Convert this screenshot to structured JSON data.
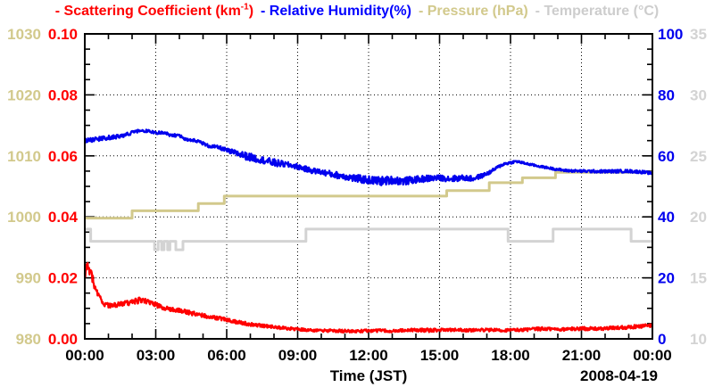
{
  "legend": {
    "entries": [
      {
        "text": "- Scattering Coefficient (km",
        "sup": "-1",
        "text_after": ")",
        "color": "#ff0000",
        "name": "legend-scattering"
      },
      {
        "text": "- Relative Humidity(%)",
        "sup": "",
        "text_after": "",
        "color": "#0000ff",
        "name": "legend-humidity"
      },
      {
        "text": "- Pressure (hPa)",
        "sup": "",
        "text_after": "",
        "color": "#d2c98c",
        "name": "legend-pressure"
      },
      {
        "text": "- Temperature (°C)",
        "sup": "",
        "text_after": "",
        "color": "#cdcdcd",
        "name": "legend-temperature"
      }
    ]
  },
  "chart_data": {
    "type": "line",
    "title": "",
    "x_axis": {
      "label": "Time (JST)",
      "date": "2008-04-19",
      "range_hours": [
        0,
        24
      ],
      "major_tick_hours": 3,
      "minor_tick_hours": 1,
      "tick_hours": [
        0,
        3,
        6,
        9,
        12,
        15,
        18,
        21,
        24
      ],
      "tick_labels": [
        "00:00",
        "03:00",
        "06:00",
        "09:00",
        "12:00",
        "15:00",
        "18:00",
        "21:00",
        "00:00"
      ]
    },
    "grid": {
      "v_lines_hours": [
        3,
        6,
        9,
        12,
        15,
        18,
        21
      ],
      "h_lines_rh": [
        20,
        40,
        60,
        80
      ]
    },
    "series": [
      {
        "name": "Scattering Coefficient (km-1)",
        "color": "#ff0000",
        "style": "noisy",
        "width": 2.3,
        "seed": 7,
        "axis_side": "left-inner",
        "range": [
          0,
          0.1
        ],
        "tick_values": [
          0.1,
          0.08,
          0.06,
          0.04,
          0.02,
          0.0
        ],
        "tick_labels": [
          "0.10",
          "0.08",
          "0.06",
          "0.04",
          "0.02",
          "0.00"
        ],
        "anchors": [
          [
            0,
            0.021,
            0.002
          ],
          [
            0.12,
            0.0245,
            0.0018
          ],
          [
            0.3,
            0.0205,
            0.0015
          ],
          [
            0.45,
            0.016,
            0.0012
          ],
          [
            0.6,
            0.0135,
            0.001
          ],
          [
            0.85,
            0.0115,
            0.0009
          ],
          [
            1.1,
            0.0108,
            0.0008
          ],
          [
            1.5,
            0.0112,
            0.0009
          ],
          [
            1.9,
            0.0118,
            0.0009
          ],
          [
            2.2,
            0.0124,
            0.001
          ],
          [
            2.45,
            0.0128,
            0.001
          ],
          [
            2.7,
            0.0118,
            0.0009
          ],
          [
            3,
            0.0112,
            0.0009
          ],
          [
            3.3,
            0.0102,
            0.0008
          ],
          [
            3.7,
            0.0096,
            0.0008
          ],
          [
            4.2,
            0.009,
            0.0007
          ],
          [
            4.7,
            0.0081,
            0.0007
          ],
          [
            5.2,
            0.0073,
            0.0006
          ],
          [
            5.8,
            0.0066,
            0.0006
          ],
          [
            6.3,
            0.0057,
            0.0006
          ],
          [
            6.9,
            0.0049,
            0.0006
          ],
          [
            7.5,
            0.0043,
            0.0005
          ],
          [
            8.2,
            0.0037,
            0.0005
          ],
          [
            9,
            0.0031,
            0.0005
          ],
          [
            9.8,
            0.0027,
            0.0005
          ],
          [
            10.6,
            0.0026,
            0.0005
          ],
          [
            11.4,
            0.0025,
            0.0005
          ],
          [
            12.2,
            0.0027,
            0.0005
          ],
          [
            13,
            0.0026,
            0.0005
          ],
          [
            13.8,
            0.0029,
            0.0005
          ],
          [
            14.6,
            0.0028,
            0.0006
          ],
          [
            15.4,
            0.003,
            0.0005
          ],
          [
            16.2,
            0.0028,
            0.0005
          ],
          [
            17,
            0.0029,
            0.0005
          ],
          [
            17.8,
            0.0028,
            0.0005
          ],
          [
            18.6,
            0.003,
            0.0005
          ],
          [
            19.4,
            0.0033,
            0.0006
          ],
          [
            20.2,
            0.0031,
            0.0005
          ],
          [
            21,
            0.0034,
            0.0006
          ],
          [
            21.8,
            0.0033,
            0.0005
          ],
          [
            22.6,
            0.0037,
            0.0006
          ],
          [
            23.3,
            0.004,
            0.0006
          ],
          [
            24,
            0.0044,
            0.0006
          ]
        ]
      },
      {
        "name": "Relative Humidity (%)",
        "color": "#0000ee",
        "style": "noisy",
        "width": 2.3,
        "seed": 13,
        "axis_side": "right-inner",
        "range": [
          0,
          100
        ],
        "tick_values": [
          100,
          80,
          60,
          40,
          20,
          0
        ],
        "tick_labels": [
          "100",
          "80",
          "60",
          "40",
          "20",
          "0"
        ],
        "anchors": [
          [
            0,
            65,
            0.7
          ],
          [
            0.5,
            65.4,
            0.7
          ],
          [
            1,
            66,
            0.7
          ],
          [
            1.5,
            66.4,
            0.6
          ],
          [
            2,
            67.6,
            0.6
          ],
          [
            2.3,
            68.3,
            0.5
          ],
          [
            2.7,
            68.1,
            0.5
          ],
          [
            3,
            67.5,
            0.5
          ],
          [
            3.3,
            67.7,
            0.45
          ],
          [
            3.6,
            66.9,
            0.5
          ],
          [
            4,
            66.6,
            0.45
          ],
          [
            4.3,
            65.3,
            0.5
          ],
          [
            4.8,
            64.9,
            0.5
          ],
          [
            5.2,
            63.3,
            0.55
          ],
          [
            5.7,
            62.7,
            0.6
          ],
          [
            6.1,
            61.5,
            0.8
          ],
          [
            6.5,
            60.7,
            1.1
          ],
          [
            7,
            59.5,
            1.3
          ],
          [
            7.5,
            58.7,
            1.1
          ],
          [
            8,
            57.7,
            1.3
          ],
          [
            8.5,
            57.2,
            0.9
          ],
          [
            9,
            56.5,
            0.9
          ],
          [
            9.5,
            55.3,
            0.9
          ],
          [
            10,
            54.7,
            0.9
          ],
          [
            10.5,
            53.9,
            1.1
          ],
          [
            11,
            53.3,
            1.1
          ],
          [
            11.5,
            52.5,
            1.3
          ],
          [
            12,
            52.1,
            1.3
          ],
          [
            12.5,
            51.7,
            1.5
          ],
          [
            13,
            52.1,
            1.3
          ],
          [
            13.5,
            51.7,
            1.3
          ],
          [
            14,
            52.2,
            1.1
          ],
          [
            14.5,
            52.6,
            1.1
          ],
          [
            15,
            52.8,
            0.9
          ],
          [
            15.5,
            52.5,
            1.1
          ],
          [
            16,
            52.8,
            0.9
          ],
          [
            16.4,
            52.5,
            0.9
          ],
          [
            16.8,
            53.5,
            0.7
          ],
          [
            17.1,
            54.5,
            0.6
          ],
          [
            17.4,
            56,
            0.5
          ],
          [
            17.7,
            57.3,
            0.5
          ],
          [
            18,
            57.8,
            0.45
          ],
          [
            18.25,
            58.2,
            0.4
          ],
          [
            18.7,
            57.4,
            0.35
          ],
          [
            19.2,
            56.6,
            0.35
          ],
          [
            19.8,
            55.8,
            0.4
          ],
          [
            20.3,
            55.2,
            0.4
          ],
          [
            21,
            55,
            0.45
          ],
          [
            22,
            54.9,
            0.5
          ],
          [
            23,
            55,
            0.5
          ],
          [
            23.6,
            54.7,
            0.5
          ],
          [
            24,
            54.2,
            0.35
          ]
        ]
      },
      {
        "name": "Pressure (hPa)",
        "color": "#d2c98c",
        "style": "step",
        "width": 3,
        "axis_side": "left-outer",
        "range": [
          980,
          1030
        ],
        "tick_values": [
          1030,
          1020,
          1010,
          1000,
          990,
          980
        ],
        "tick_labels": [
          "1030",
          "1020",
          "1010",
          "1000",
          "990",
          "980"
        ],
        "steps": [
          [
            0,
            999.8
          ],
          [
            2,
            1001
          ],
          [
            4.8,
            1002.2
          ],
          [
            5.9,
            1003.4
          ],
          [
            15.3,
            1004.3
          ],
          [
            17.1,
            1005.6
          ],
          [
            18.5,
            1006.4
          ],
          [
            19.9,
            1007.3
          ]
        ]
      },
      {
        "name": "Temperature (C)",
        "color": "#d3d3d3",
        "style": "step",
        "width": 3,
        "axis_side": "right-outer",
        "range": [
          10,
          35
        ],
        "tick_values": [
          35,
          30,
          25,
          20,
          15,
          10
        ],
        "tick_labels": [
          "35",
          "30",
          "25",
          "20",
          "15",
          "10"
        ],
        "steps": [
          [
            0,
            19
          ],
          [
            0.25,
            18
          ],
          [
            2.95,
            17.3
          ],
          [
            3.1,
            18
          ],
          [
            3.25,
            17.3
          ],
          [
            3.35,
            18
          ],
          [
            3.5,
            17.3
          ],
          [
            3.6,
            18
          ],
          [
            3.85,
            17.3
          ],
          [
            4.15,
            18
          ],
          [
            9.35,
            19
          ],
          [
            17.9,
            18
          ],
          [
            19.8,
            19
          ],
          [
            23.1,
            18
          ]
        ]
      }
    ]
  }
}
